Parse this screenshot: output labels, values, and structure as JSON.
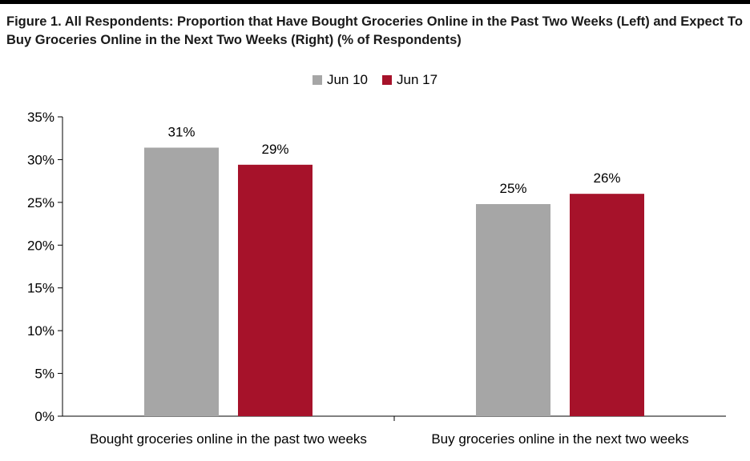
{
  "figure": {
    "title": "Figure 1. All Respondents: Proportion that Have Bought Groceries Online in the Past Two Weeks (Left) and Expect To Buy Groceries Online in the Next Two Weeks (Right) (% of Respondents)"
  },
  "chart_data": {
    "type": "bar",
    "title": "Figure 1. All Respondents: Proportion that Have Bought Groceries Online in the Past Two Weeks (Left) and Expect To Buy Groceries Online in the Next Two Weeks (Right) (% of Respondents)",
    "categories": [
      "Bought groceries online in the past two weeks",
      "Buy groceries online in the next two weeks"
    ],
    "series": [
      {
        "name": "Jun 10",
        "color": "#a6a6a6",
        "values": [
          31.4,
          24.8
        ],
        "labels": [
          "31%",
          "25%"
        ]
      },
      {
        "name": "Jun 17",
        "color": "#a6122a",
        "values": [
          29.4,
          26.0
        ],
        "labels": [
          "29%",
          "26%"
        ]
      }
    ],
    "yticks": [
      "0%",
      "5%",
      "10%",
      "15%",
      "20%",
      "25%",
      "30%",
      "35%"
    ],
    "ylim": [
      0,
      35
    ],
    "xlabel": "",
    "ylabel": "",
    "grid": false,
    "legend_position": "top-center"
  }
}
